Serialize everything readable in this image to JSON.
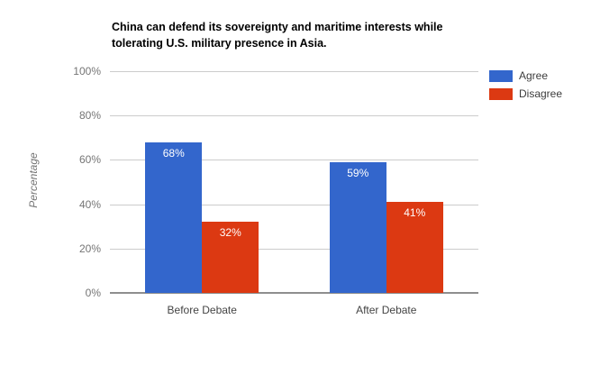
{
  "chart_data": {
    "type": "bar",
    "title": "China can defend its sovereignty and maritime interests while tolerating U.S. military presence in Asia.",
    "title_lines": [
      "China can defend its sovereignty and maritime interests while",
      "tolerating U.S. military presence in Asia."
    ],
    "categories": [
      "Before Debate",
      "After Debate"
    ],
    "series": [
      {
        "name": "Agree",
        "color": "#3366CC",
        "values": [
          68,
          59
        ],
        "labels": [
          "68%",
          "59%"
        ]
      },
      {
        "name": "Disagree",
        "color": "#DC3912",
        "values": [
          32,
          41
        ],
        "labels": [
          "32%",
          "41%"
        ]
      }
    ],
    "xlabel": "",
    "ylabel": "Percentage",
    "ylim": [
      0,
      100
    ],
    "y_ticks": [
      "0%",
      "20%",
      "40%",
      "60%",
      "80%",
      "100%"
    ],
    "grid": true,
    "legend_position": "right",
    "colors": {
      "gridline": "#cccccc",
      "axis_line": "#8e8e8e",
      "tick_label": "#757575",
      "category_label": "#444444",
      "bar_value_label": "#ffffff",
      "title": "#000000",
      "background": "#ffffff"
    }
  }
}
